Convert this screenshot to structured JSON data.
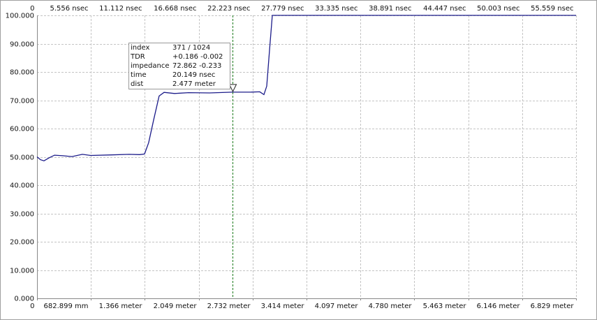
{
  "chart_data": {
    "type": "line",
    "x": [
      0,
      0.36,
      0.72,
      1.22,
      1.8,
      2.66,
      3.6,
      4.68,
      5.54,
      7.7,
      9.5,
      10.58,
      11.08,
      11.51,
      12.02,
      12.59,
      13.1,
      14.18,
      15.62,
      17.78,
      20.149,
      22.09,
      22.96,
      23.39,
      23.68,
      23.97,
      24.25,
      55.559
    ],
    "series": [
      {
        "color": "#1c1c8a",
        "values": [
          50,
          49,
          48.6,
          49.6,
          50.6,
          50.4,
          50.1,
          50.9,
          50.5,
          50.7,
          50.9,
          50.8,
          51,
          55,
          63,
          71.5,
          72.8,
          72.4,
          72.7,
          72.6,
          72.86,
          72.9,
          73,
          72,
          75,
          88,
          100,
          100
        ]
      }
    ],
    "xlim": [
      0,
      55.559
    ],
    "xticks": [
      0,
      {
        "value": 5.556,
        "label": "5.556 nsec"
      },
      {
        "value": 11.112,
        "label": "11.112 nsec"
      },
      {
        "value": 16.668,
        "label": "16.668 nsec"
      },
      {
        "value": 22.223,
        "label": "22.223 nsec"
      },
      {
        "value": 27.779,
        "label": "27.779 nsec"
      },
      {
        "value": 33.335,
        "label": "33.335 nsec"
      },
      {
        "value": 38.891,
        "label": "38.891 nsec"
      },
      {
        "value": 44.447,
        "label": "44.447 nsec"
      },
      {
        "value": 50.003,
        "label": "50.003 nsec"
      },
      {
        "value": 55.559,
        "label": "55.559 nsec"
      }
    ],
    "x2lim": [
      0,
      6.829
    ],
    "x2ticks": [
      0,
      {
        "value": 0.682899,
        "label": "682.899 mm"
      },
      {
        "value": 1.366,
        "label": "1.366 meter"
      },
      {
        "value": 2.049,
        "label": "2.049 meter"
      },
      {
        "value": 2.732,
        "label": "2.732 meter"
      },
      {
        "value": 3.414,
        "label": "3.414 meter"
      },
      {
        "value": 4.097,
        "label": "4.097 meter"
      },
      {
        "value": 4.78,
        "label": "4.780 meter"
      },
      {
        "value": 5.463,
        "label": "5.463 meter"
      },
      {
        "value": 6.146,
        "label": "6.146 meter"
      },
      {
        "value": 6.829,
        "label": "6.829 meter"
      }
    ],
    "ylim": [
      0,
      100
    ],
    "yticks": [
      {
        "value": 0,
        "label": "0.000"
      },
      {
        "value": 10,
        "label": "10.000"
      },
      {
        "value": 20,
        "label": "20.000"
      },
      {
        "value": 30,
        "label": "30.000"
      },
      {
        "value": 40,
        "label": "40.000"
      },
      {
        "value": 50,
        "label": "50.000"
      },
      {
        "value": 60,
        "label": "60.000"
      },
      {
        "value": 70,
        "label": "70.000"
      },
      {
        "value": 80,
        "label": "80.000"
      },
      {
        "value": 90,
        "label": "90.000"
      },
      {
        "value": 100,
        "label": "100.000"
      }
    ],
    "grid": true,
    "cursor": {
      "x": 20.149,
      "y": 72.862,
      "color": "#1a7a1a",
      "rows": [
        [
          "index",
          "371 / 1024"
        ],
        [
          "TDR",
          "+0.186 -0.002"
        ],
        [
          "impedance",
          "72.862 -0.233"
        ],
        [
          "time",
          "20.149 nsec"
        ],
        [
          "dist",
          "2.477 meter"
        ]
      ]
    }
  }
}
